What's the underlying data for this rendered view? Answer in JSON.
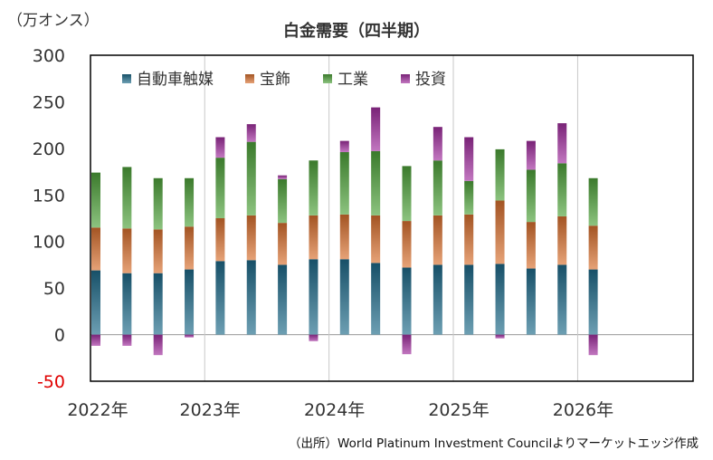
{
  "header": {
    "unit": "（万オンス）",
    "title": "白金需要（四半期）"
  },
  "footer": {
    "source": "（出所）World Platinum Investment Councilよりマーケットエッジ作成"
  },
  "chart_data": {
    "type": "bar",
    "stacked": true,
    "title": "白金需要（四半期）",
    "ylabel": "（万オンス）",
    "ylim": [
      -50,
      300
    ],
    "yticks": [
      300,
      250,
      200,
      150,
      100,
      50,
      0,
      -50
    ],
    "negative_tick_color": "#e00000",
    "grid": "vertical-by-year",
    "legend_position": "top-left",
    "periods": [
      "2022Q1",
      "2022Q2",
      "2022Q3",
      "2022Q4",
      "2023Q1",
      "2023Q2",
      "2023Q3",
      "2023Q4",
      "2024Q1",
      "2024Q2",
      "2024Q3",
      "2024Q4",
      "2025Q1",
      "2025Q2",
      "2025Q3",
      "2025Q4",
      "2026Q1"
    ],
    "year_labels": [
      "2022年",
      "2023年",
      "2024年",
      "2025年",
      "2026年"
    ],
    "series": [
      {
        "name": "自動車触媒",
        "color": "#1f6b8a",
        "values": [
          69,
          66,
          66,
          70,
          79,
          80,
          75,
          81,
          81,
          77,
          72,
          75,
          75,
          76,
          71,
          75,
          70
        ]
      },
      {
        "name": "宝飾",
        "color": "#d9702e",
        "values": [
          46,
          48,
          47,
          46,
          46,
          48,
          45,
          47,
          48,
          51,
          50,
          53,
          54,
          68,
          50,
          52,
          47
        ]
      },
      {
        "name": "工業",
        "color": "#4ea33a",
        "values": [
          59,
          66,
          55,
          52,
          65,
          79,
          47,
          59,
          67,
          69,
          59,
          59,
          36,
          55,
          56,
          57,
          51
        ]
      },
      {
        "name": "投資",
        "color": "#a12e9e",
        "values": [
          -12,
          -12,
          -22,
          -3,
          22,
          19,
          4,
          -7,
          12,
          47,
          -21,
          36,
          47,
          -4,
          31,
          43,
          -22
        ]
      }
    ]
  }
}
